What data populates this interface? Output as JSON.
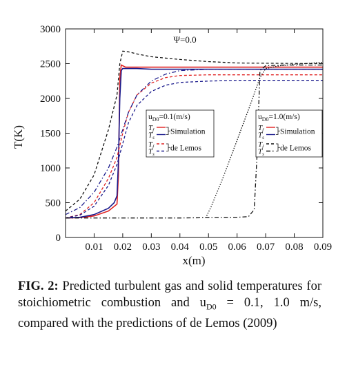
{
  "chart_data": {
    "type": "line",
    "title": "Ψ=0.0",
    "xlabel": "x(m)",
    "ylabel": "T(K)",
    "xlim": [
      0,
      0.09
    ],
    "ylim": [
      0,
      3000
    ],
    "xticks": [
      "0.01",
      "0.02",
      "0.03",
      "0.04",
      "0.05",
      "0.06",
      "0.07",
      "0.08",
      "0.09"
    ],
    "xtick_values": [
      0.01,
      0.02,
      0.03,
      0.04,
      0.05,
      0.06,
      0.07,
      0.08,
      0.09
    ],
    "yticks": [
      "0",
      "500",
      "1000",
      "1500",
      "2000",
      "2500",
      "3000"
    ],
    "ytick_values": [
      0,
      500,
      1000,
      1500,
      2000,
      2500,
      3000
    ],
    "grid": false,
    "legends": [
      {
        "title": "u",
        "title_sub": "D0",
        "title_rest": "=0.1(m/s)",
        "entries": [
          {
            "sym": "T",
            "sub": "f",
            "color": "#e02020",
            "style": "solid"
          },
          {
            "sym": "T",
            "sub": "s",
            "color": "#1a1a8c",
            "style": "solid"
          },
          {
            "sym": "T",
            "sub": "f",
            "color": "#e02020",
            "style": "dashed"
          },
          {
            "sym": "T",
            "sub": "s",
            "color": "#1a1a8c",
            "style": "dashed"
          }
        ],
        "group_labels": [
          "Simulation",
          "de Lemos"
        ]
      },
      {
        "title": "u",
        "title_sub": "D0",
        "title_rest": "=1.0(m/s)",
        "entries": [
          {
            "sym": "T",
            "sub": "f",
            "color": "#e02020",
            "style": "solid"
          },
          {
            "sym": "T",
            "sub": "s",
            "color": "#1a1a8c",
            "style": "solid"
          },
          {
            "sym": "T",
            "sub": "f",
            "color": "#111111",
            "style": "dashed"
          },
          {
            "sym": "T",
            "sub": "s",
            "color": "#111111",
            "style": "dashdot"
          }
        ],
        "group_labels": [
          "Simulation",
          "de Lemos"
        ]
      }
    ],
    "series": [
      {
        "color": "#e02020",
        "style": "solid",
        "x": [
          0,
          0.005,
          0.01,
          0.015,
          0.018,
          0.0185,
          0.019,
          0.0195,
          0.02,
          0.021,
          0.022,
          0.025,
          0.03,
          0.05,
          0.09
        ],
        "y": [
          280,
          285,
          310,
          380,
          480,
          900,
          2300,
          2480,
          2470,
          2450,
          2450,
          2450,
          2450,
          2450,
          2450
        ]
      },
      {
        "color": "#1a1a8c",
        "style": "solid",
        "x": [
          0,
          0.005,
          0.01,
          0.015,
          0.017,
          0.018,
          0.0185,
          0.019,
          0.0195,
          0.02,
          0.021,
          0.025,
          0.03,
          0.05,
          0.09
        ],
        "y": [
          280,
          290,
          330,
          420,
          500,
          600,
          1100,
          2000,
          2400,
          2430,
          2430,
          2430,
          2420,
          2420,
          2420
        ]
      },
      {
        "color": "#e02020",
        "style": "dashed",
        "x": [
          0,
          0.005,
          0.01,
          0.015,
          0.018,
          0.02,
          0.022,
          0.025,
          0.03,
          0.035,
          0.04,
          0.05,
          0.06,
          0.09
        ],
        "y": [
          280,
          330,
          500,
          850,
          1150,
          1500,
          1800,
          2050,
          2220,
          2300,
          2330,
          2340,
          2340,
          2340
        ]
      },
      {
        "color": "#1a1a8c",
        "style": "dashed",
        "x": [
          0,
          0.005,
          0.01,
          0.015,
          0.018,
          0.02,
          0.022,
          0.025,
          0.03,
          0.035,
          0.04,
          0.05,
          0.06,
          0.09
        ],
        "y": [
          280,
          320,
          450,
          750,
          1050,
          1350,
          1650,
          1900,
          2100,
          2190,
          2230,
          2250,
          2260,
          2260
        ]
      },
      {
        "color": "#111111",
        "style": "dashed",
        "x": [
          0,
          0.005,
          0.01,
          0.015,
          0.018,
          0.019,
          0.02,
          0.022,
          0.025,
          0.03,
          0.04,
          0.05,
          0.06,
          0.09
        ],
        "y": [
          380,
          550,
          900,
          1550,
          2050,
          2500,
          2680,
          2670,
          2640,
          2600,
          2560,
          2530,
          2510,
          2500
        ]
      },
      {
        "color": "#1a1a8c",
        "style": "dashdot",
        "x": [
          0,
          0.005,
          0.01,
          0.015,
          0.018,
          0.02,
          0.022,
          0.025,
          0.03,
          0.035,
          0.04,
          0.05,
          0.06,
          0.09
        ],
        "y": [
          330,
          430,
          650,
          1000,
          1300,
          1550,
          1800,
          2050,
          2250,
          2350,
          2400,
          2420,
          2420,
          2420
        ]
      },
      {
        "color": "#111111",
        "style": "dashdot",
        "x": [
          0,
          0.01,
          0.02,
          0.03,
          0.04,
          0.05,
          0.06,
          0.064,
          0.066,
          0.067,
          0.068,
          0.07,
          0.075,
          0.08,
          0.09
        ],
        "y": [
          280,
          280,
          280,
          280,
          280,
          285,
          290,
          300,
          400,
          1200,
          2400,
          2470,
          2480,
          2480,
          2480
        ]
      },
      {
        "color": "#111111",
        "style": "dotted",
        "x": [
          0.049,
          0.051,
          0.055,
          0.06,
          0.065,
          0.068,
          0.07,
          0.075,
          0.08,
          0.09
        ],
        "y": [
          280,
          450,
          850,
          1400,
          1950,
          2300,
          2430,
          2470,
          2490,
          2520
        ]
      }
    ]
  },
  "caption": {
    "label": "FIG. 2:",
    "text": "Predicted turbulent gas and solid temperatures for stoichiometric combustion and u",
    "sub": "D0",
    "text_rest": " = 0.1, 1.0 m/s, compared with the predictions of de Lemos (2009)"
  }
}
